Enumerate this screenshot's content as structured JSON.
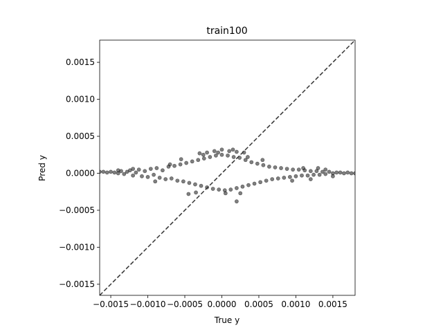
{
  "chart_data": {
    "type": "scatter",
    "title": "train100",
    "xlabel": "True y",
    "ylabel": "Pred y",
    "xlim": [
      -0.00165,
      0.0018
    ],
    "ylim": [
      -0.00165,
      0.0018
    ],
    "xticks": [
      -0.0015,
      -0.001,
      -0.0005,
      0.0,
      0.0005,
      0.001,
      0.0015
    ],
    "xtick_labels": [
      "−0.0015",
      "−0.0010",
      "−0.0005",
      "0.0000",
      "0.0005",
      "0.0010",
      "0.0015"
    ],
    "yticks": [
      -0.0015,
      -0.001,
      -0.0005,
      0.0,
      0.0005,
      0.001,
      0.0015
    ],
    "ytick_labels": [
      "−0.0015",
      "−0.0010",
      "−0.0005",
      "0.0000",
      "0.0005",
      "0.0010",
      "0.0015"
    ],
    "grid": false,
    "legend": "none",
    "point_color": "#000000",
    "point_alpha": 0.5,
    "identity_line": {
      "x": [
        -0.00165,
        0.0018
      ],
      "y": [
        -0.00165,
        0.0018
      ],
      "style": "dashed",
      "color": "#333333"
    },
    "series": [
      {
        "points": [
          [
            -0.00165,
            2e-05
          ],
          [
            -0.0016,
            2e-05
          ],
          [
            -0.00155,
            1e-05
          ],
          [
            -0.0015,
            2e-05
          ],
          [
            -0.00145,
            1e-05
          ],
          [
            -0.0014,
            0.0
          ],
          [
            -0.00136,
            3e-05
          ],
          [
            -0.00132,
            -1e-05
          ],
          [
            -0.00128,
            2e-05
          ],
          [
            -0.00124,
            4e-05
          ],
          [
            -0.0012,
            -3e-05
          ],
          [
            -0.00116,
            1e-05
          ],
          [
            -0.00112,
            5e-05
          ],
          [
            -0.00108,
            -4e-05
          ],
          [
            -0.00104,
            3e-05
          ],
          [
            -0.001,
            -5e-05
          ],
          [
            -0.00096,
            6e-05
          ],
          [
            -0.00092,
            -2e-05
          ],
          [
            -0.00088,
            7e-05
          ],
          [
            -0.00084,
            -6e-05
          ],
          [
            -0.0008,
            4e-05
          ],
          [
            -0.00076,
            -8e-05
          ],
          [
            -0.00072,
            9e-05
          ],
          [
            -0.00068,
            -7e-05
          ],
          [
            -0.00064,
            0.0001
          ],
          [
            -0.0006,
            -0.0001
          ],
          [
            -0.00056,
            0.00012
          ],
          [
            -0.00052,
            -0.00011
          ],
          [
            -0.00048,
            0.00014
          ],
          [
            -0.00044,
            -0.00013
          ],
          [
            -0.0004,
            0.00016
          ],
          [
            -0.00036,
            -0.00015
          ],
          [
            -0.00032,
            0.00018
          ],
          [
            -0.00028,
            -0.00017
          ],
          [
            -0.00024,
            0.0002
          ],
          [
            -0.0002,
            -0.00019
          ],
          [
            -0.00016,
            0.00022
          ],
          [
            -0.00012,
            -0.00021
          ],
          [
            -8e-05,
            0.00024
          ],
          [
            -4e-05,
            -0.00022
          ],
          [
            0.0,
            0.00025
          ],
          [
            4e-05,
            -0.00023
          ],
          [
            8e-05,
            0.00024
          ],
          [
            0.00012,
            -0.00022
          ],
          [
            0.00016,
            0.00022
          ],
          [
            0.0002,
            -0.0002
          ],
          [
            0.00024,
            0.00021
          ],
          [
            0.00028,
            -0.00018
          ],
          [
            0.00032,
            0.00018
          ],
          [
            0.00036,
            -0.00016
          ],
          [
            0.0004,
            0.00015
          ],
          [
            0.00044,
            -0.00014
          ],
          [
            0.00048,
            0.00013
          ],
          [
            0.00052,
            -0.00012
          ],
          [
            0.00056,
            0.00011
          ],
          [
            0.0006,
            -0.0001
          ],
          [
            0.00064,
            9e-05
          ],
          [
            0.00068,
            -8e-05
          ],
          [
            0.00072,
            8e-05
          ],
          [
            0.00076,
            -7e-05
          ],
          [
            0.0008,
            7e-05
          ],
          [
            0.00084,
            -6e-05
          ],
          [
            0.00088,
            6e-05
          ],
          [
            0.00092,
            -5e-05
          ],
          [
            0.00096,
            5e-05
          ],
          [
            0.001,
            -4e-05
          ],
          [
            0.00104,
            5e-05
          ],
          [
            0.00108,
            -3e-05
          ],
          [
            0.00112,
            4e-05
          ],
          [
            0.00116,
            -3e-05
          ],
          [
            0.0012,
            3e-05
          ],
          [
            0.00124,
            -2e-05
          ],
          [
            0.00128,
            3e-05
          ],
          [
            0.00132,
            -2e-05
          ],
          [
            0.00136,
            2e-05
          ],
          [
            0.0014,
            -1e-05
          ],
          [
            0.00145,
            2e-05
          ],
          [
            0.0015,
            0.0
          ],
          [
            0.00155,
            1e-05
          ],
          [
            0.0016,
            1e-05
          ],
          [
            0.00165,
            0.0
          ],
          [
            0.0017,
            1e-05
          ],
          [
            0.00175,
            0.0
          ],
          [
            0.0018,
            0.0
          ],
          [
            -0.0003,
            0.00027
          ],
          [
            -0.0001,
            0.0003
          ],
          [
            0.0001,
            0.0003
          ],
          [
            0.0002,
            0.00029
          ],
          [
            0.0003,
            0.00028
          ],
          [
            -0.0002,
            0.00028
          ],
          [
            0.0,
            0.00032
          ],
          [
            0.00025,
            -0.00027
          ],
          [
            0.0002,
            -0.00038
          ],
          [
            -0.00045,
            -0.00028
          ],
          [
            -0.00035,
            -0.00026
          ],
          [
            5e-05,
            -0.00027
          ],
          [
            -0.0007,
            0.00012
          ],
          [
            0.00095,
            -0.0001
          ],
          [
            0.0011,
            7e-05
          ],
          [
            0.0013,
            7e-05
          ],
          [
            0.0014,
            5e-05
          ],
          [
            0.0015,
            -4e-05
          ],
          [
            -0.0012,
            6e-05
          ],
          [
            -0.0014,
            4e-05
          ],
          [
            0.0012,
            -8e-05
          ],
          [
            -0.0009,
            -0.00011
          ],
          [
            0.00055,
            0.00018
          ],
          [
            -0.00055,
            0.00019
          ],
          [
            -0.00025,
            0.00025
          ],
          [
            0.00015,
            0.00032
          ],
          [
            -5e-05,
            0.00028
          ],
          [
            0.00035,
            0.00022
          ]
        ]
      }
    ]
  }
}
